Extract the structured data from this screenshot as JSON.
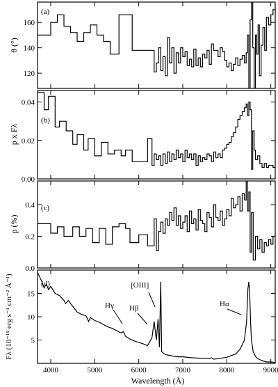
{
  "chart_data": [
    {
      "type": "line",
      "panel_label": "(a)",
      "ylabel": "θ (°)",
      "xlim": [
        3700,
        9100
      ],
      "ylim": [
        108,
        176
      ],
      "yticks": [
        120,
        140,
        160
      ],
      "series": [
        {
          "style": "step",
          "x": [
            3700,
            3900,
            4000,
            4150,
            4300,
            4450,
            4600,
            4750,
            4900,
            5050,
            5200,
            5350,
            5550,
            5720,
            5850,
            6000,
            6200,
            6350,
            6400,
            6450,
            6500,
            6550,
            6600,
            6650,
            6700,
            6750,
            6800,
            6850,
            6900,
            6950,
            7000,
            7050,
            7100,
            7150,
            7200,
            7250,
            7300,
            7350,
            7400,
            7450,
            7500,
            7550,
            7600,
            7650,
            7700,
            7750,
            7800,
            7850,
            7900,
            7950,
            8000,
            8050,
            8100,
            8150,
            8200,
            8250,
            8300,
            8350,
            8400,
            8440,
            8470,
            8500,
            8530,
            8560,
            8590,
            8620,
            8650,
            8680,
            8710,
            8740,
            8780,
            8820,
            8860,
            8900,
            8950,
            9000,
            9050,
            9100
          ],
          "values": [
            150,
            150,
            160,
            166,
            157,
            152,
            145,
            152,
            158,
            150,
            145,
            135,
            166,
            166,
            138,
            138,
            138,
            121,
            128,
            140,
            122,
            133,
            118,
            148,
            128,
            140,
            120,
            136,
            128,
            140,
            133,
            137,
            126,
            131,
            125,
            139,
            126,
            132,
            125,
            135,
            132,
            138,
            127,
            143,
            138,
            138,
            133,
            140,
            137,
            130,
            125,
            128,
            122,
            127,
            132,
            126,
            131,
            134,
            128,
            136,
            150,
            108,
            162,
            176,
            140,
            108,
            150,
            135,
            158,
            118,
            142,
            156,
            138,
            164,
            158,
            166,
            170,
            174
          ]
        }
      ]
    },
    {
      "type": "line",
      "panel_label": "(b)",
      "ylabel": "p x Fλ",
      "xlim": [
        3700,
        9100
      ],
      "ylim": [
        0,
        0.046
      ],
      "yticks": [
        0.0,
        0.02,
        0.04
      ],
      "ytick_labels": [
        "0.00",
        "0.02",
        "0.04"
      ],
      "series": [
        {
          "style": "step",
          "x": [
            3700,
            3850,
            3950,
            4100,
            4200,
            4350,
            4500,
            4600,
            4750,
            4850,
            5000,
            5150,
            5300,
            5450,
            5600,
            5700,
            5850,
            6000,
            6200,
            6300,
            6350,
            6400,
            6450,
            6500,
            6550,
            6600,
            6650,
            6700,
            6750,
            6800,
            6850,
            6900,
            6950,
            7000,
            7050,
            7100,
            7150,
            7200,
            7250,
            7300,
            7350,
            7400,
            7450,
            7500,
            7550,
            7600,
            7650,
            7700,
            7750,
            7800,
            7850,
            7900,
            7950,
            8000,
            8050,
            8100,
            8150,
            8200,
            8250,
            8300,
            8350,
            8400,
            8440,
            8470,
            8500,
            8530,
            8560,
            8590,
            8620,
            8650,
            8700,
            8750,
            8800,
            8850,
            8900,
            8950,
            9000,
            9050,
            9100
          ],
          "values": [
            0.045,
            0.036,
            0.043,
            0.027,
            0.03,
            0.025,
            0.018,
            0.023,
            0.015,
            0.021,
            0.012,
            0.019,
            0.013,
            0.015,
            0.012,
            0.015,
            0.009,
            0.009,
            0.021,
            0.007,
            0.013,
            0.01,
            0.012,
            0.007,
            0.013,
            0.008,
            0.014,
            0.009,
            0.013,
            0.01,
            0.015,
            0.011,
            0.013,
            0.009,
            0.015,
            0.011,
            0.013,
            0.01,
            0.013,
            0.007,
            0.012,
            0.009,
            0.011,
            0.01,
            0.013,
            0.012,
            0.009,
            0.014,
            0.011,
            0.013,
            0.011,
            0.015,
            0.016,
            0.018,
            0.019,
            0.022,
            0.024,
            0.027,
            0.031,
            0.033,
            0.035,
            0.037,
            0.039,
            0.033,
            0.04,
            0.036,
            0.005,
            0.025,
            0.015,
            0.01,
            0.012,
            0.008,
            0.006,
            0.008,
            0.006,
            0.007,
            0.007,
            0.006,
            0.007
          ]
        }
      ]
    },
    {
      "type": "line",
      "panel_label": "(c)",
      "ylabel": "p (%)",
      "xlim": [
        3700,
        9100
      ],
      "ylim": [
        0,
        0.55
      ],
      "yticks": [
        0.0,
        0.2,
        0.4
      ],
      "ytick_labels": [
        "0.0",
        "0.2",
        "0.4"
      ],
      "series": [
        {
          "style": "step",
          "x": [
            3700,
            3800,
            4000,
            4150,
            4300,
            4500,
            4650,
            4800,
            4950,
            5100,
            5250,
            5400,
            5550,
            5700,
            5800,
            6000,
            6200,
            6350,
            6400,
            6450,
            6500,
            6550,
            6600,
            6650,
            6700,
            6750,
            6800,
            6850,
            6900,
            6950,
            7000,
            7050,
            7100,
            7150,
            7200,
            7250,
            7300,
            7350,
            7400,
            7450,
            7500,
            7550,
            7600,
            7650,
            7700,
            7750,
            7800,
            7850,
            7900,
            7950,
            8000,
            8050,
            8100,
            8150,
            8200,
            8250,
            8300,
            8350,
            8400,
            8440,
            8470,
            8500,
            8530,
            8560,
            8600,
            8650,
            8700,
            8750,
            8800,
            8850,
            8900,
            8950,
            9000,
            9050,
            9100
          ],
          "values": [
            0.28,
            0.28,
            0.22,
            0.26,
            0.2,
            0.26,
            0.2,
            0.25,
            0.16,
            0.25,
            0.15,
            0.26,
            0.28,
            0.25,
            0.16,
            0.21,
            0.14,
            0.31,
            0.11,
            0.23,
            0.29,
            0.22,
            0.31,
            0.27,
            0.35,
            0.3,
            0.38,
            0.27,
            0.33,
            0.25,
            0.29,
            0.33,
            0.23,
            0.36,
            0.28,
            0.31,
            0.24,
            0.37,
            0.3,
            0.28,
            0.23,
            0.35,
            0.32,
            0.26,
            0.4,
            0.32,
            0.3,
            0.36,
            0.27,
            0.31,
            0.37,
            0.33,
            0.44,
            0.38,
            0.4,
            0.45,
            0.36,
            0.47,
            0.43,
            0.55,
            0.36,
            0.48,
            0.1,
            0.35,
            0.05,
            0.2,
            0.12,
            0.18,
            0.1,
            0.16,
            0.14,
            0.18,
            0.15,
            0.2,
            0.22
          ]
        }
      ]
    },
    {
      "type": "line",
      "panel_label": "(d)",
      "ylabel": "Fλ (10⁻¹⁵ erg s⁻¹ cm⁻² Å⁻¹)",
      "xlabel": "Wavelength (Å)",
      "xlim": [
        3700,
        9100
      ],
      "xticks": [
        4000,
        5000,
        6000,
        7000,
        8000,
        9000
      ],
      "ylim": [
        0,
        20
      ],
      "yticks": [
        5,
        10,
        15
      ],
      "annotations": [
        "Hγ",
        "Hβ",
        "[OIII]",
        "Hα"
      ],
      "series": [
        {
          "style": "line",
          "x": [
            3700,
            3750,
            3800,
            3850,
            3900,
            3950,
            4000,
            4100,
            4200,
            4300,
            4340,
            4400,
            4500,
            4600,
            4700,
            4800,
            4861,
            4900,
            5000,
            5100,
            5200,
            5300,
            5400,
            5500,
            5600,
            5650,
            5700,
            5800,
            5900,
            6000,
            6100,
            6200,
            6300,
            6350,
            6400,
            6440,
            6470,
            6500,
            6520,
            6560,
            6600,
            6700,
            6800,
            6900,
            7000,
            7200,
            7400,
            7600,
            7650,
            7700,
            7800,
            8000,
            8200,
            8300,
            8400,
            8450,
            8480,
            8500,
            8520,
            8540,
            8560,
            8600,
            8650,
            8700,
            8800,
            8900,
            9000,
            9100
          ],
          "values": [
            19.5,
            18.5,
            17.5,
            16.2,
            17.0,
            15.8,
            16.5,
            15.0,
            14.5,
            13.5,
            12.8,
            13.5,
            12.2,
            11.0,
            10.5,
            10.2,
            9.0,
            9.8,
            9.2,
            8.8,
            8.3,
            7.8,
            7.5,
            7.0,
            6.5,
            6.8,
            5.8,
            5.2,
            4.8,
            4.5,
            4.2,
            3.8,
            5.5,
            9.0,
            5.0,
            9.5,
            3.5,
            17.5,
            2.5,
            2.2,
            1.9,
            1.7,
            1.5,
            1.4,
            1.4,
            1.2,
            1.1,
            1.0,
            1.2,
            0.9,
            1.0,
            1.3,
            2.0,
            3.0,
            5.0,
            9.0,
            16.0,
            17.5,
            15.0,
            9.0,
            5.0,
            2.5,
            1.5,
            1.0,
            0.6,
            0.3,
            0.3,
            0.2
          ]
        }
      ]
    }
  ]
}
